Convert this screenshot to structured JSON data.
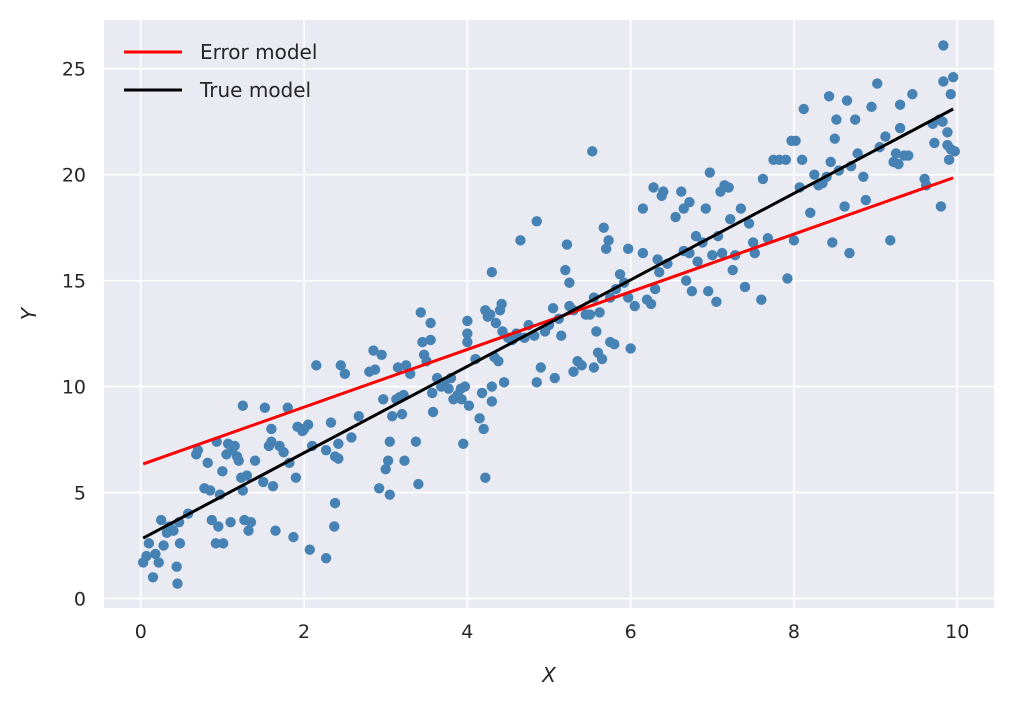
{
  "chart_data": {
    "type": "scatter",
    "title": "",
    "xlabel": "X",
    "ylabel": "Y",
    "xlim": [
      -0.45,
      10.45
    ],
    "ylim": [
      -0.45,
      27.3
    ],
    "xticks": [
      0,
      2,
      4,
      6,
      8,
      10
    ],
    "yticks": [
      0,
      5,
      10,
      15,
      20,
      25
    ],
    "grid": true,
    "legend_position": "top-left",
    "background": "#eaeaf2",
    "points_color": "#4682b4",
    "points": [
      [
        0.03,
        1.7
      ],
      [
        0.07,
        2.0
      ],
      [
        0.1,
        2.6
      ],
      [
        0.15,
        1.0
      ],
      [
        0.18,
        2.1
      ],
      [
        0.22,
        1.7
      ],
      [
        0.25,
        3.7
      ],
      [
        0.28,
        2.5
      ],
      [
        0.32,
        3.1
      ],
      [
        0.35,
        3.4
      ],
      [
        0.4,
        3.2
      ],
      [
        0.44,
        1.5
      ],
      [
        0.45,
        0.7
      ],
      [
        0.47,
        3.6
      ],
      [
        0.48,
        2.6
      ],
      [
        0.58,
        4.0
      ],
      [
        0.68,
        6.8
      ],
      [
        0.7,
        7.0
      ],
      [
        0.78,
        5.2
      ],
      [
        0.82,
        6.4
      ],
      [
        0.85,
        5.1
      ],
      [
        0.87,
        3.7
      ],
      [
        0.92,
        2.6
      ],
      [
        0.93,
        7.4
      ],
      [
        0.95,
        3.4
      ],
      [
        0.97,
        4.9
      ],
      [
        1.0,
        6.0
      ],
      [
        1.01,
        2.6
      ],
      [
        1.05,
        6.8
      ],
      [
        1.07,
        7.3
      ],
      [
        1.1,
        3.6
      ],
      [
        1.12,
        7.0
      ],
      [
        1.15,
        7.2
      ],
      [
        1.18,
        6.7
      ],
      [
        1.2,
        6.5
      ],
      [
        1.23,
        5.7
      ],
      [
        1.25,
        5.1
      ],
      [
        1.25,
        9.1
      ],
      [
        1.27,
        3.7
      ],
      [
        1.3,
        5.8
      ],
      [
        1.32,
        3.2
      ],
      [
        1.35,
        3.6
      ],
      [
        1.4,
        6.5
      ],
      [
        1.5,
        5.5
      ],
      [
        1.52,
        9.0
      ],
      [
        1.57,
        7.2
      ],
      [
        1.6,
        8.0
      ],
      [
        1.6,
        7.4
      ],
      [
        1.62,
        5.3
      ],
      [
        1.65,
        3.2
      ],
      [
        1.7,
        7.2
      ],
      [
        1.75,
        6.9
      ],
      [
        1.8,
        9.0
      ],
      [
        1.82,
        6.4
      ],
      [
        1.87,
        2.9
      ],
      [
        1.9,
        5.7
      ],
      [
        1.92,
        8.1
      ],
      [
        1.98,
        7.9
      ],
      [
        2.0,
        8.0
      ],
      [
        2.05,
        8.2
      ],
      [
        2.07,
        2.3
      ],
      [
        2.1,
        7.2
      ],
      [
        2.15,
        11.0
      ],
      [
        2.27,
        7.0
      ],
      [
        2.27,
        1.9
      ],
      [
        2.33,
        8.3
      ],
      [
        2.37,
        3.4
      ],
      [
        2.38,
        4.5
      ],
      [
        2.38,
        6.7
      ],
      [
        2.42,
        6.6
      ],
      [
        2.42,
        7.3
      ],
      [
        2.45,
        11.0
      ],
      [
        2.5,
        10.6
      ],
      [
        2.58,
        7.6
      ],
      [
        2.67,
        8.6
      ],
      [
        2.8,
        10.7
      ],
      [
        2.85,
        11.7
      ],
      [
        2.87,
        10.8
      ],
      [
        2.92,
        5.2
      ],
      [
        2.95,
        11.5
      ],
      [
        2.97,
        9.4
      ],
      [
        3.0,
        6.1
      ],
      [
        3.03,
        6.5
      ],
      [
        3.05,
        7.4
      ],
      [
        3.05,
        4.9
      ],
      [
        3.08,
        8.6
      ],
      [
        3.13,
        9.4
      ],
      [
        3.15,
        10.9
      ],
      [
        3.17,
        9.5
      ],
      [
        3.2,
        8.7
      ],
      [
        3.22,
        9.6
      ],
      [
        3.23,
        6.5
      ],
      [
        3.25,
        11.0
      ],
      [
        3.3,
        10.6
      ],
      [
        3.37,
        7.4
      ],
      [
        3.4,
        5.4
      ],
      [
        3.43,
        13.5
      ],
      [
        3.45,
        12.1
      ],
      [
        3.47,
        11.5
      ],
      [
        3.5,
        11.2
      ],
      [
        3.55,
        13.0
      ],
      [
        3.55,
        12.2
      ],
      [
        3.57,
        9.7
      ],
      [
        3.58,
        8.8
      ],
      [
        3.63,
        10.4
      ],
      [
        3.68,
        10.0
      ],
      [
        3.72,
        10.2
      ],
      [
        3.77,
        9.9
      ],
      [
        3.8,
        10.4
      ],
      [
        3.83,
        9.4
      ],
      [
        3.88,
        9.6
      ],
      [
        3.92,
        9.9
      ],
      [
        3.93,
        9.4
      ],
      [
        3.95,
        7.3
      ],
      [
        3.97,
        10.0
      ],
      [
        4.0,
        13.1
      ],
      [
        4.0,
        12.5
      ],
      [
        4.0,
        12.1
      ],
      [
        4.02,
        9.1
      ],
      [
        4.1,
        11.3
      ],
      [
        4.15,
        8.5
      ],
      [
        4.18,
        9.7
      ],
      [
        4.2,
        8.0
      ],
      [
        4.22,
        5.7
      ],
      [
        4.22,
        13.6
      ],
      [
        4.25,
        13.3
      ],
      [
        4.28,
        13.4
      ],
      [
        4.3,
        15.4
      ],
      [
        4.3,
        10.0
      ],
      [
        4.3,
        9.3
      ],
      [
        4.33,
        11.4
      ],
      [
        4.35,
        13.0
      ],
      [
        4.38,
        11.2
      ],
      [
        4.4,
        13.6
      ],
      [
        4.42,
        13.9
      ],
      [
        4.43,
        12.6
      ],
      [
        4.45,
        10.2
      ],
      [
        4.5,
        12.3
      ],
      [
        4.55,
        12.2
      ],
      [
        4.6,
        12.5
      ],
      [
        4.65,
        16.9
      ],
      [
        4.7,
        12.3
      ],
      [
        4.75,
        12.9
      ],
      [
        4.82,
        12.4
      ],
      [
        4.85,
        10.2
      ],
      [
        4.85,
        17.8
      ],
      [
        4.9,
        10.9
      ],
      [
        4.95,
        12.6
      ],
      [
        5.0,
        12.9
      ],
      [
        5.05,
        13.7
      ],
      [
        5.07,
        10.4
      ],
      [
        5.12,
        13.2
      ],
      [
        5.15,
        12.4
      ],
      [
        5.2,
        15.5
      ],
      [
        5.22,
        16.7
      ],
      [
        5.25,
        14.9
      ],
      [
        5.25,
        13.8
      ],
      [
        5.3,
        13.6
      ],
      [
        5.3,
        10.7
      ],
      [
        5.35,
        11.2
      ],
      [
        5.4,
        11.0
      ],
      [
        5.45,
        13.4
      ],
      [
        5.5,
        13.4
      ],
      [
        5.53,
        21.1
      ],
      [
        5.55,
        14.2
      ],
      [
        5.55,
        10.9
      ],
      [
        5.58,
        12.6
      ],
      [
        5.6,
        11.6
      ],
      [
        5.62,
        13.5
      ],
      [
        5.65,
        11.3
      ],
      [
        5.67,
        17.5
      ],
      [
        5.7,
        16.5
      ],
      [
        5.73,
        16.9
      ],
      [
        5.75,
        14.2
      ],
      [
        5.75,
        12.1
      ],
      [
        5.8,
        12.0
      ],
      [
        5.82,
        14.6
      ],
      [
        5.87,
        15.3
      ],
      [
        5.92,
        14.9
      ],
      [
        5.97,
        14.2
      ],
      [
        5.97,
        16.5
      ],
      [
        6.0,
        11.8
      ],
      [
        6.05,
        13.8
      ],
      [
        6.15,
        18.4
      ],
      [
        6.15,
        16.3
      ],
      [
        6.2,
        14.1
      ],
      [
        6.25,
        13.9
      ],
      [
        6.28,
        19.4
      ],
      [
        6.3,
        14.6
      ],
      [
        6.33,
        16.0
      ],
      [
        6.35,
        15.4
      ],
      [
        6.38,
        19.0
      ],
      [
        6.4,
        19.2
      ],
      [
        6.45,
        15.8
      ],
      [
        6.55,
        18.0
      ],
      [
        6.62,
        19.2
      ],
      [
        6.65,
        16.4
      ],
      [
        6.65,
        18.4
      ],
      [
        6.68,
        15.0
      ],
      [
        6.72,
        16.3
      ],
      [
        6.72,
        18.7
      ],
      [
        6.75,
        14.5
      ],
      [
        6.8,
        17.1
      ],
      [
        6.82,
        15.9
      ],
      [
        6.88,
        16.8
      ],
      [
        6.92,
        18.4
      ],
      [
        6.95,
        14.5
      ],
      [
        6.97,
        20.1
      ],
      [
        7.0,
        16.2
      ],
      [
        7.05,
        14.0
      ],
      [
        7.07,
        17.1
      ],
      [
        7.1,
        19.2
      ],
      [
        7.12,
        16.3
      ],
      [
        7.15,
        19.5
      ],
      [
        7.2,
        19.4
      ],
      [
        7.22,
        17.9
      ],
      [
        7.25,
        15.5
      ],
      [
        7.28,
        16.2
      ],
      [
        7.35,
        18.4
      ],
      [
        7.4,
        14.7
      ],
      [
        7.45,
        17.7
      ],
      [
        7.5,
        16.8
      ],
      [
        7.52,
        16.3
      ],
      [
        7.6,
        14.1
      ],
      [
        7.62,
        19.8
      ],
      [
        7.68,
        17.0
      ],
      [
        7.75,
        20.7
      ],
      [
        7.82,
        20.7
      ],
      [
        7.9,
        20.7
      ],
      [
        7.92,
        15.1
      ],
      [
        7.97,
        21.6
      ],
      [
        8.0,
        16.9
      ],
      [
        8.02,
        21.6
      ],
      [
        8.07,
        19.4
      ],
      [
        8.1,
        20.7
      ],
      [
        8.12,
        23.1
      ],
      [
        8.2,
        18.2
      ],
      [
        8.25,
        20.0
      ],
      [
        8.3,
        19.5
      ],
      [
        8.35,
        19.6
      ],
      [
        8.4,
        19.9
      ],
      [
        8.43,
        23.7
      ],
      [
        8.45,
        20.6
      ],
      [
        8.47,
        16.8
      ],
      [
        8.5,
        21.7
      ],
      [
        8.52,
        22.6
      ],
      [
        8.55,
        20.2
      ],
      [
        8.62,
        18.5
      ],
      [
        8.65,
        23.5
      ],
      [
        8.68,
        16.3
      ],
      [
        8.7,
        20.4
      ],
      [
        8.75,
        22.6
      ],
      [
        8.78,
        21.0
      ],
      [
        8.85,
        19.9
      ],
      [
        8.88,
        18.8
      ],
      [
        8.95,
        23.2
      ],
      [
        9.02,
        24.3
      ],
      [
        9.05,
        21.3
      ],
      [
        9.12,
        21.8
      ],
      [
        9.18,
        16.9
      ],
      [
        9.22,
        20.6
      ],
      [
        9.25,
        21.0
      ],
      [
        9.28,
        20.5
      ],
      [
        9.3,
        23.3
      ],
      [
        9.3,
        22.2
      ],
      [
        9.35,
        20.9
      ],
      [
        9.4,
        20.9
      ],
      [
        9.45,
        23.8
      ],
      [
        9.6,
        19.8
      ],
      [
        9.62,
        19.5
      ],
      [
        9.7,
        22.4
      ],
      [
        9.72,
        21.5
      ],
      [
        9.78,
        22.6
      ],
      [
        9.8,
        18.5
      ],
      [
        9.82,
        22.5
      ],
      [
        9.83,
        26.1
      ],
      [
        9.83,
        24.4
      ],
      [
        9.88,
        21.4
      ],
      [
        9.9,
        20.7
      ],
      [
        9.92,
        23.8
      ],
      [
        9.92,
        21.2
      ],
      [
        9.95,
        24.6
      ],
      [
        9.97,
        21.1
      ],
      [
        9.88,
        22.0
      ]
    ],
    "series": [
      {
        "name": "Error model",
        "color": "#ff0000",
        "x": [
          0.03,
          9.95
        ],
        "y": [
          6.35,
          19.85
        ]
      },
      {
        "name": "True model",
        "color": "#000000",
        "x": [
          0.03,
          9.95
        ],
        "y": [
          2.85,
          23.1
        ]
      }
    ]
  }
}
